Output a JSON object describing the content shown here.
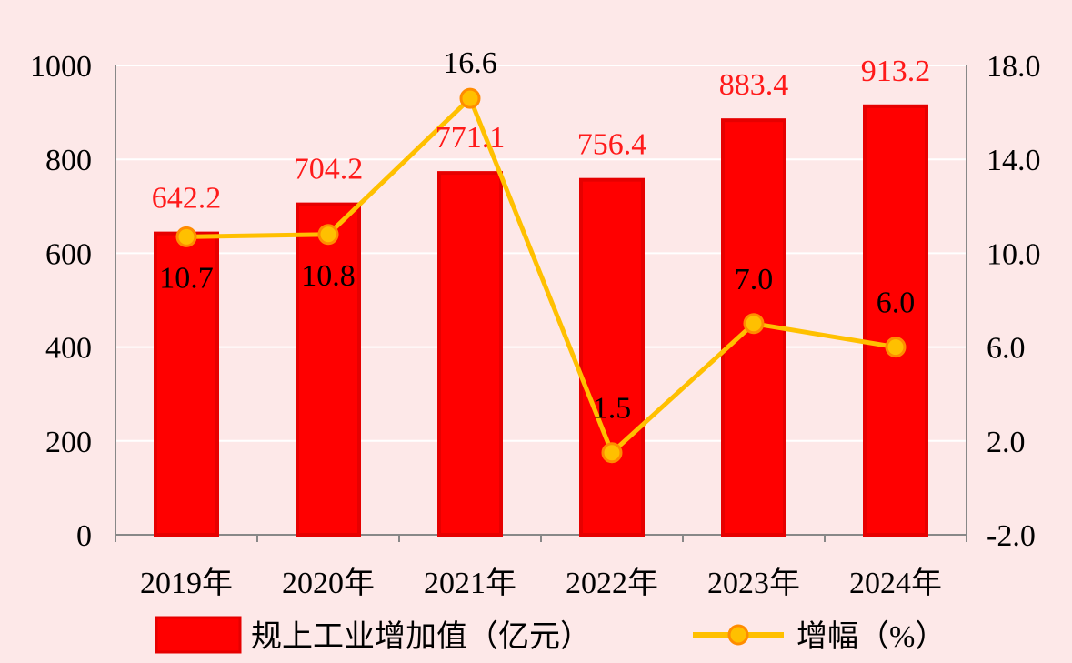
{
  "chart_data": {
    "type": "bar",
    "categories": [
      "2019年",
      "2020年",
      "2021年",
      "2022年",
      "2023年",
      "2024年"
    ],
    "series": [
      {
        "name": "规上工业增加值（亿元）",
        "type": "bar",
        "axis": "left",
        "values": [
          642.2,
          704.2,
          771.1,
          756.4,
          883.4,
          913.2
        ],
        "labels": [
          "642.2",
          "704.2",
          "771.1",
          "756.4",
          "883.4",
          "913.2"
        ]
      },
      {
        "name": "增幅（%）",
        "type": "line",
        "axis": "right",
        "values": [
          10.7,
          10.8,
          16.6,
          1.5,
          7.0,
          6.0
        ],
        "labels": [
          "10.7",
          "10.8",
          "16.6",
          "1.5",
          "7.0",
          "6.0"
        ]
      }
    ],
    "y_left": {
      "lim": [
        0,
        1000
      ],
      "ticks": [
        "0",
        "200",
        "400",
        "600",
        "800",
        "1000"
      ]
    },
    "y_right": {
      "lim": [
        -2,
        18
      ],
      "ticks": [
        "-2.0",
        "2.0",
        "6.0",
        "10.0",
        "14.0",
        "18.0"
      ]
    },
    "grid": true,
    "legend_position": "bottom",
    "colors": {
      "bar": "#ff0000",
      "bar_edge": "#e60000",
      "line": "#ffc000",
      "marker_fill": "#ffc000",
      "marker_edge": "#ff8c00",
      "bar_label": "#ff1a1a",
      "background": "#fde8e8"
    }
  }
}
